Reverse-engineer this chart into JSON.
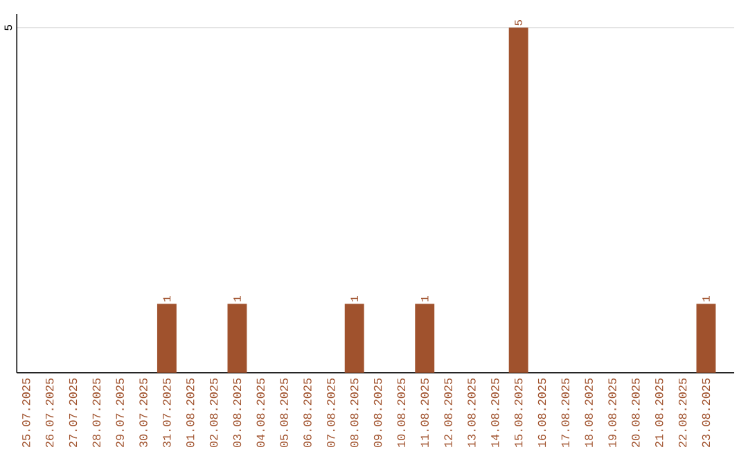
{
  "chart_data": {
    "type": "bar",
    "categories": [
      "25.07.2025",
      "26.07.2025",
      "27.07.2025",
      "28.07.2025",
      "29.07.2025",
      "30.07.2025",
      "31.07.2025",
      "01.08.2025",
      "02.08.2025",
      "03.08.2025",
      "04.08.2025",
      "05.08.2025",
      "06.08.2025",
      "07.08.2025",
      "08.08.2025",
      "09.08.2025",
      "10.08.2025",
      "11.08.2025",
      "12.08.2025",
      "13.08.2025",
      "14.08.2025",
      "15.08.2025",
      "16.08.2025",
      "17.08.2025",
      "18.08.2025",
      "19.08.2025",
      "20.08.2025",
      "21.08.2025",
      "22.08.2025",
      "23.08.2025"
    ],
    "values": [
      0,
      0,
      0,
      0,
      0,
      0,
      1,
      0,
      0,
      1,
      0,
      0,
      0,
      0,
      1,
      0,
      0,
      1,
      0,
      0,
      0,
      5,
      0,
      0,
      0,
      0,
      0,
      0,
      0,
      1
    ],
    "value_labels": [
      null,
      null,
      null,
      null,
      null,
      null,
      "1",
      null,
      null,
      "1",
      null,
      null,
      null,
      null,
      "1",
      null,
      null,
      "1",
      null,
      null,
      null,
      "5",
      null,
      null,
      null,
      null,
      null,
      null,
      null,
      "1"
    ],
    "color": "#a0522d",
    "ylim": [
      0,
      5.2
    ],
    "yticks": [
      5
    ],
    "grid": "y"
  }
}
